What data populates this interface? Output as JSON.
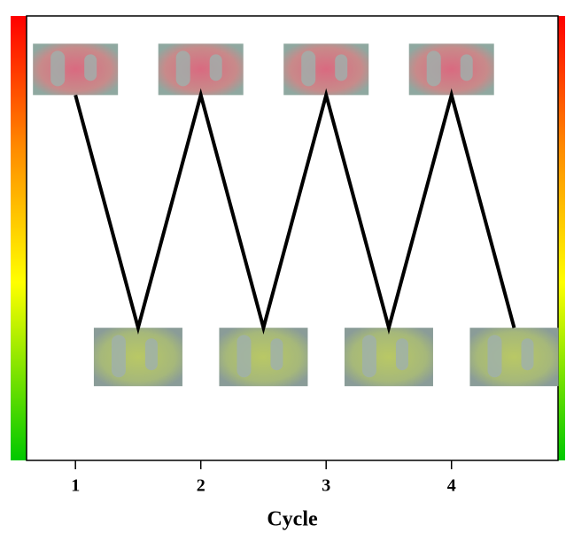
{
  "chart_data": {
    "type": "line",
    "x_label": "Cycle",
    "x": [
      1,
      1.5,
      2,
      2.5,
      3,
      3.5,
      4,
      4.5
    ],
    "series": [
      {
        "color": "#000000",
        "values": [
          1,
          0,
          1,
          0,
          1,
          0,
          1,
          0
        ]
      }
    ],
    "xlim": [
      0.61,
      4.85
    ],
    "xticks": [
      1,
      2,
      3,
      4
    ],
    "ylim": [
      -0.57,
      1.34
    ]
  }
}
